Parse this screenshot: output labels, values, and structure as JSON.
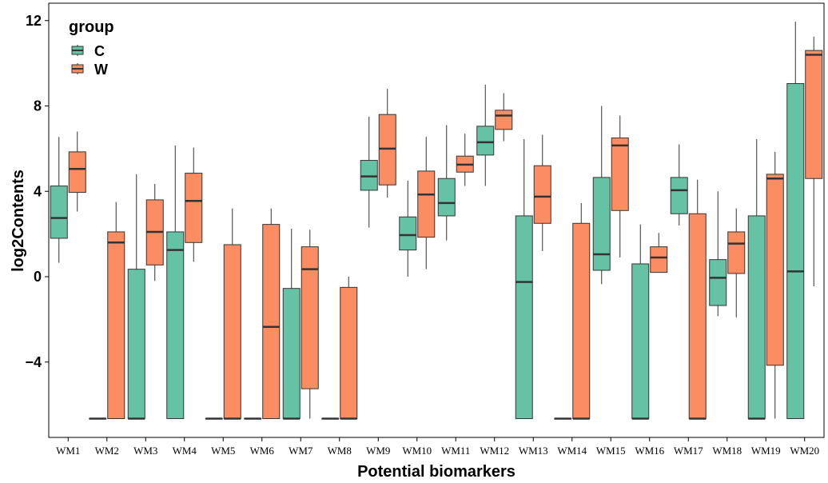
{
  "chart_data": {
    "type": "boxplot",
    "xlabel": "Potential biomarkers",
    "ylabel": "log2Contents",
    "ylim": [
      -7.5,
      12.3
    ],
    "yticks": [
      -4,
      0,
      4,
      8,
      12
    ],
    "ytick_labels": [
      "−4",
      "0",
      "4",
      "8",
      "12"
    ],
    "categories": [
      "WM1",
      "WM2",
      "WM3",
      "WM4",
      "WM5",
      "WM6",
      "WM7",
      "WM8",
      "WM9",
      "WM10",
      "WM11",
      "WM12",
      "WM13",
      "WM14",
      "WM15",
      "WM16",
      "WM17",
      "WM18",
      "WM19",
      "WM20"
    ],
    "legend": {
      "title": "group",
      "position": "top-left",
      "entries": [
        "C",
        "W"
      ]
    },
    "colors": {
      "C": "#66c2a5",
      "W": "#fc8d62",
      "outline": "#333333"
    },
    "grid": false,
    "series": [
      {
        "name": "C",
        "boxes": [
          {
            "min": 0.65,
            "q1": 1.8,
            "median": 2.75,
            "q3": 4.25,
            "max": 6.55
          },
          {
            "min": -6.65,
            "q1": -6.65,
            "median": -6.65,
            "q3": -6.65,
            "max": -6.65
          },
          {
            "min": -6.65,
            "q1": -6.65,
            "median": -6.65,
            "q3": 0.35,
            "max": 4.8
          },
          {
            "min": -6.65,
            "q1": -6.65,
            "median": 1.25,
            "q3": 2.1,
            "max": 6.15
          },
          {
            "min": -6.65,
            "q1": -6.65,
            "median": -6.65,
            "q3": -6.65,
            "max": -6.65
          },
          {
            "min": -6.65,
            "q1": -6.65,
            "median": -6.65,
            "q3": -6.65,
            "max": -6.65
          },
          {
            "min": -6.65,
            "q1": -6.65,
            "median": -6.65,
            "q3": -0.55,
            "max": 2.25
          },
          {
            "min": -6.65,
            "q1": -6.65,
            "median": -6.65,
            "q3": -6.65,
            "max": -6.65
          },
          {
            "min": 2.3,
            "q1": 4.05,
            "median": 4.7,
            "q3": 5.45,
            "max": 7.5
          },
          {
            "min": 0.0,
            "q1": 1.25,
            "median": 1.95,
            "q3": 2.8,
            "max": 4.5
          },
          {
            "min": 1.7,
            "q1": 2.85,
            "median": 3.45,
            "q3": 4.6,
            "max": 7.1
          },
          {
            "min": 4.25,
            "q1": 5.7,
            "median": 6.3,
            "q3": 7.05,
            "max": 9.0
          },
          {
            "min": -6.65,
            "q1": -6.65,
            "median": -0.25,
            "q3": 2.85,
            "max": 6.45
          },
          {
            "min": -6.65,
            "q1": -6.65,
            "median": -6.65,
            "q3": -6.65,
            "max": -6.65
          },
          {
            "min": -0.35,
            "q1": 0.3,
            "median": 1.05,
            "q3": 4.65,
            "max": 8.0
          },
          {
            "min": -6.65,
            "q1": -6.65,
            "median": -6.65,
            "q3": 0.6,
            "max": 2.45
          },
          {
            "min": 2.4,
            "q1": 2.95,
            "median": 4.05,
            "q3": 4.65,
            "max": 6.2
          },
          {
            "min": -1.85,
            "q1": -1.35,
            "median": -0.05,
            "q3": 0.8,
            "max": 4.0
          },
          {
            "min": -6.65,
            "q1": -6.65,
            "median": -6.65,
            "q3": 2.85,
            "max": 6.45
          },
          {
            "min": -6.65,
            "q1": -6.65,
            "median": 0.25,
            "q3": 9.05,
            "max": 11.95
          }
        ]
      },
      {
        "name": "W",
        "boxes": [
          {
            "min": 3.05,
            "q1": 3.95,
            "median": 5.05,
            "q3": 5.85,
            "max": 6.8
          },
          {
            "min": -6.65,
            "q1": -6.65,
            "median": 1.6,
            "q3": 2.1,
            "max": 3.5
          },
          {
            "min": -0.2,
            "q1": 0.55,
            "median": 2.1,
            "q3": 3.6,
            "max": 4.35
          },
          {
            "min": 0.7,
            "q1": 1.6,
            "median": 3.55,
            "q3": 4.85,
            "max": 6.05
          },
          {
            "min": -6.65,
            "q1": -6.65,
            "median": -6.65,
            "q3": 1.5,
            "max": 3.2
          },
          {
            "min": -6.65,
            "q1": -6.65,
            "median": -2.35,
            "q3": 2.45,
            "max": 3.2
          },
          {
            "min": -6.65,
            "q1": -5.25,
            "median": 0.35,
            "q3": 1.4,
            "max": 2.2
          },
          {
            "min": -6.65,
            "q1": -6.65,
            "median": -6.65,
            "q3": -0.5,
            "max": 0.0
          },
          {
            "min": 3.7,
            "q1": 4.3,
            "median": 6.0,
            "q3": 7.6,
            "max": 8.8
          },
          {
            "min": 0.35,
            "q1": 1.85,
            "median": 3.85,
            "q3": 4.95,
            "max": 6.55
          },
          {
            "min": 4.25,
            "q1": 4.9,
            "median": 5.25,
            "q3": 5.65,
            "max": 6.7
          },
          {
            "min": 6.35,
            "q1": 6.9,
            "median": 7.55,
            "q3": 7.8,
            "max": 8.6
          },
          {
            "min": 1.2,
            "q1": 2.5,
            "median": 3.75,
            "q3": 5.2,
            "max": 6.65
          },
          {
            "min": -6.65,
            "q1": -6.65,
            "median": -6.65,
            "q3": 2.5,
            "max": 3.45
          },
          {
            "min": 0.9,
            "q1": 3.1,
            "median": 6.15,
            "q3": 6.5,
            "max": 7.55
          },
          {
            "min": 0.2,
            "q1": 0.2,
            "median": 0.9,
            "q3": 1.4,
            "max": 2.05
          },
          {
            "min": -6.65,
            "q1": -6.65,
            "median": -6.65,
            "q3": 2.95,
            "max": 4.55
          },
          {
            "min": -1.9,
            "q1": 0.15,
            "median": 1.55,
            "q3": 2.1,
            "max": 3.2
          },
          {
            "min": -6.65,
            "q1": -4.15,
            "median": 4.6,
            "q3": 4.8,
            "max": 5.85
          },
          {
            "min": -0.45,
            "q1": 4.6,
            "median": 10.4,
            "q3": 10.6,
            "max": 11.25
          }
        ]
      }
    ]
  }
}
